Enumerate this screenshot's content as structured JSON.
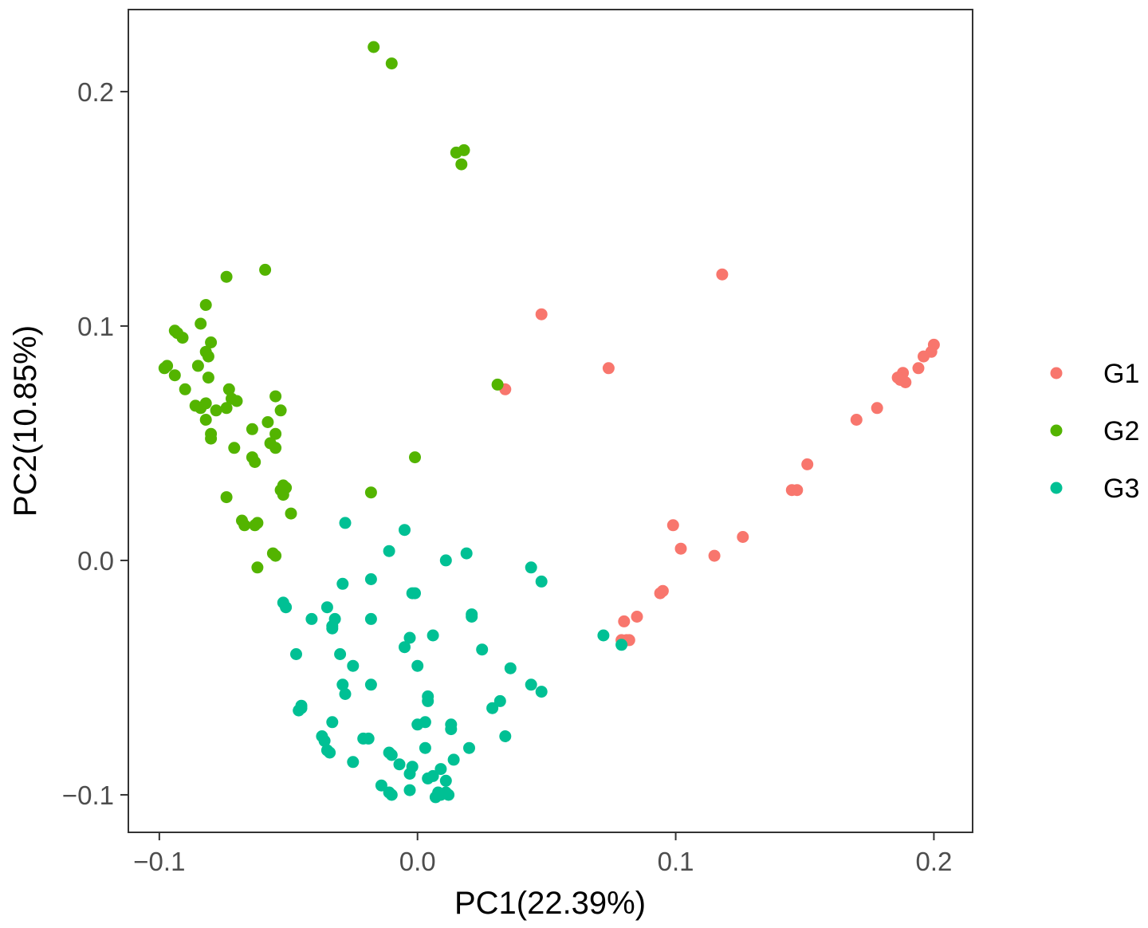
{
  "chart_data": {
    "type": "scatter",
    "title": "",
    "xlabel": "PC1(22.39%)",
    "ylabel": "PC2(10.85%)",
    "xlim": [
      -0.112,
      0.215
    ],
    "ylim": [
      -0.116,
      0.235
    ],
    "x_ticks": [
      -0.1,
      0.0,
      0.1,
      0.2
    ],
    "x_tick_labels": [
      "−0.1",
      "0.0",
      "0.1",
      "0.2"
    ],
    "y_ticks": [
      -0.1,
      0.0,
      0.1,
      0.2
    ],
    "y_tick_labels": [
      "−0.1",
      "0.0",
      "0.1",
      "0.2"
    ],
    "grid": false,
    "legend_position": "right",
    "series": [
      {
        "name": "G1",
        "color": "#F8766D",
        "points": [
          [
            0.118,
            0.122
          ],
          [
            0.048,
            0.105
          ],
          [
            0.074,
            0.082
          ],
          [
            0.034,
            0.073
          ],
          [
            0.2,
            0.092
          ],
          [
            0.199,
            0.089
          ],
          [
            0.196,
            0.087
          ],
          [
            0.194,
            0.082
          ],
          [
            0.188,
            0.08
          ],
          [
            0.186,
            0.078
          ],
          [
            0.189,
            0.076
          ],
          [
            0.187,
            0.077
          ],
          [
            0.178,
            0.065
          ],
          [
            0.17,
            0.06
          ],
          [
            0.151,
            0.041
          ],
          [
            0.147,
            0.03
          ],
          [
            0.145,
            0.03
          ],
          [
            0.099,
            0.015
          ],
          [
            0.102,
            0.005
          ],
          [
            0.115,
            0.002
          ],
          [
            0.126,
            0.01
          ],
          [
            0.094,
            -0.014
          ],
          [
            0.095,
            -0.013
          ],
          [
            0.085,
            -0.024
          ],
          [
            0.08,
            -0.026
          ],
          [
            0.079,
            -0.034
          ],
          [
            0.081,
            -0.034
          ],
          [
            0.082,
            -0.034
          ]
        ]
      },
      {
        "name": "G2",
        "color": "#53B400",
        "points": [
          [
            -0.017,
            0.219
          ],
          [
            -0.01,
            0.212
          ],
          [
            0.015,
            0.174
          ],
          [
            0.018,
            0.175
          ],
          [
            0.017,
            0.169
          ],
          [
            -0.074,
            0.121
          ],
          [
            -0.059,
            0.124
          ],
          [
            -0.082,
            0.109
          ],
          [
            -0.084,
            0.101
          ],
          [
            -0.094,
            0.098
          ],
          [
            -0.093,
            0.097
          ],
          [
            -0.091,
            0.095
          ],
          [
            -0.08,
            0.093
          ],
          [
            -0.082,
            0.089
          ],
          [
            -0.081,
            0.087
          ],
          [
            -0.097,
            0.083
          ],
          [
            -0.098,
            0.082
          ],
          [
            -0.085,
            0.083
          ],
          [
            -0.094,
            0.079
          ],
          [
            -0.081,
            0.078
          ],
          [
            -0.09,
            0.073
          ],
          [
            -0.073,
            0.073
          ],
          [
            -0.055,
            0.07
          ],
          [
            -0.072,
            0.069
          ],
          [
            -0.07,
            0.068
          ],
          [
            -0.082,
            0.067
          ],
          [
            -0.086,
            0.066
          ],
          [
            -0.084,
            0.065
          ],
          [
            -0.074,
            0.065
          ],
          [
            -0.078,
            0.064
          ],
          [
            -0.053,
            0.064
          ],
          [
            -0.082,
            0.06
          ],
          [
            -0.058,
            0.059
          ],
          [
            -0.064,
            0.056
          ],
          [
            -0.08,
            0.054
          ],
          [
            -0.055,
            0.054
          ],
          [
            -0.08,
            0.052
          ],
          [
            -0.057,
            0.05
          ],
          [
            -0.055,
            0.048
          ],
          [
            -0.071,
            0.048
          ],
          [
            -0.064,
            0.044
          ],
          [
            -0.063,
            0.042
          ],
          [
            0.031,
            0.075
          ],
          [
            -0.001,
            0.044
          ],
          [
            -0.052,
            0.032
          ],
          [
            -0.053,
            0.03
          ],
          [
            -0.051,
            0.031
          ],
          [
            -0.052,
            0.028
          ],
          [
            -0.018,
            0.029
          ],
          [
            -0.074,
            0.027
          ],
          [
            -0.049,
            0.02
          ],
          [
            -0.068,
            0.017
          ],
          [
            -0.063,
            0.015
          ],
          [
            -0.062,
            0.016
          ],
          [
            -0.067,
            0.015
          ],
          [
            -0.056,
            0.003
          ],
          [
            -0.055,
            0.002
          ],
          [
            -0.062,
            -0.003
          ]
        ]
      },
      {
        "name": "G3",
        "color": "#00C094",
        "points": [
          [
            -0.028,
            0.016
          ],
          [
            -0.005,
            0.013
          ],
          [
            -0.011,
            0.004
          ],
          [
            0.019,
            0.003
          ],
          [
            0.011,
            0.0
          ],
          [
            0.044,
            -0.003
          ],
          [
            -0.018,
            -0.008
          ],
          [
            0.048,
            -0.009
          ],
          [
            -0.029,
            -0.01
          ],
          [
            -0.002,
            -0.014
          ],
          [
            -0.001,
            -0.014
          ],
          [
            -0.052,
            -0.018
          ],
          [
            -0.051,
            -0.02
          ],
          [
            -0.035,
            -0.02
          ],
          [
            -0.032,
            -0.025
          ],
          [
            0.021,
            -0.023
          ],
          [
            0.021,
            -0.024
          ],
          [
            -0.041,
            -0.025
          ],
          [
            -0.018,
            -0.025
          ],
          [
            -0.033,
            -0.028
          ],
          [
            -0.033,
            -0.029
          ],
          [
            0.006,
            -0.032
          ],
          [
            -0.003,
            -0.033
          ],
          [
            0.072,
            -0.032
          ],
          [
            -0.005,
            -0.037
          ],
          [
            0.079,
            -0.036
          ],
          [
            0.025,
            -0.038
          ],
          [
            -0.047,
            -0.04
          ],
          [
            -0.03,
            -0.04
          ],
          [
            0.0,
            -0.045
          ],
          [
            0.036,
            -0.046
          ],
          [
            -0.025,
            -0.045
          ],
          [
            -0.029,
            -0.053
          ],
          [
            -0.018,
            -0.053
          ],
          [
            0.044,
            -0.053
          ],
          [
            0.048,
            -0.056
          ],
          [
            -0.028,
            -0.057
          ],
          [
            0.004,
            -0.058
          ],
          [
            0.004,
            -0.06
          ],
          [
            0.032,
            -0.06
          ],
          [
            0.029,
            -0.063
          ],
          [
            -0.045,
            -0.062
          ],
          [
            -0.046,
            -0.064
          ],
          [
            -0.045,
            -0.063
          ],
          [
            -0.033,
            -0.069
          ],
          [
            0.003,
            -0.069
          ],
          [
            0.0,
            -0.07
          ],
          [
            0.013,
            -0.07
          ],
          [
            0.013,
            -0.072
          ],
          [
            0.034,
            -0.075
          ],
          [
            -0.037,
            -0.075
          ],
          [
            -0.036,
            -0.077
          ],
          [
            -0.021,
            -0.076
          ],
          [
            -0.019,
            -0.076
          ],
          [
            -0.035,
            -0.081
          ],
          [
            -0.034,
            -0.082
          ],
          [
            0.02,
            -0.08
          ],
          [
            0.003,
            -0.08
          ],
          [
            -0.011,
            -0.082
          ],
          [
            -0.01,
            -0.083
          ],
          [
            -0.025,
            -0.086
          ],
          [
            0.014,
            -0.085
          ],
          [
            -0.007,
            -0.087
          ],
          [
            -0.002,
            -0.088
          ],
          [
            0.009,
            -0.089
          ],
          [
            -0.003,
            -0.091
          ],
          [
            0.004,
            -0.093
          ],
          [
            0.006,
            -0.092
          ],
          [
            0.011,
            -0.094
          ],
          [
            -0.014,
            -0.096
          ],
          [
            -0.003,
            -0.098
          ],
          [
            -0.011,
            -0.099
          ],
          [
            -0.01,
            -0.1
          ],
          [
            0.008,
            -0.099
          ],
          [
            0.011,
            -0.099
          ],
          [
            0.007,
            -0.101
          ],
          [
            0.009,
            -0.1
          ],
          [
            0.012,
            -0.1
          ]
        ]
      }
    ]
  }
}
